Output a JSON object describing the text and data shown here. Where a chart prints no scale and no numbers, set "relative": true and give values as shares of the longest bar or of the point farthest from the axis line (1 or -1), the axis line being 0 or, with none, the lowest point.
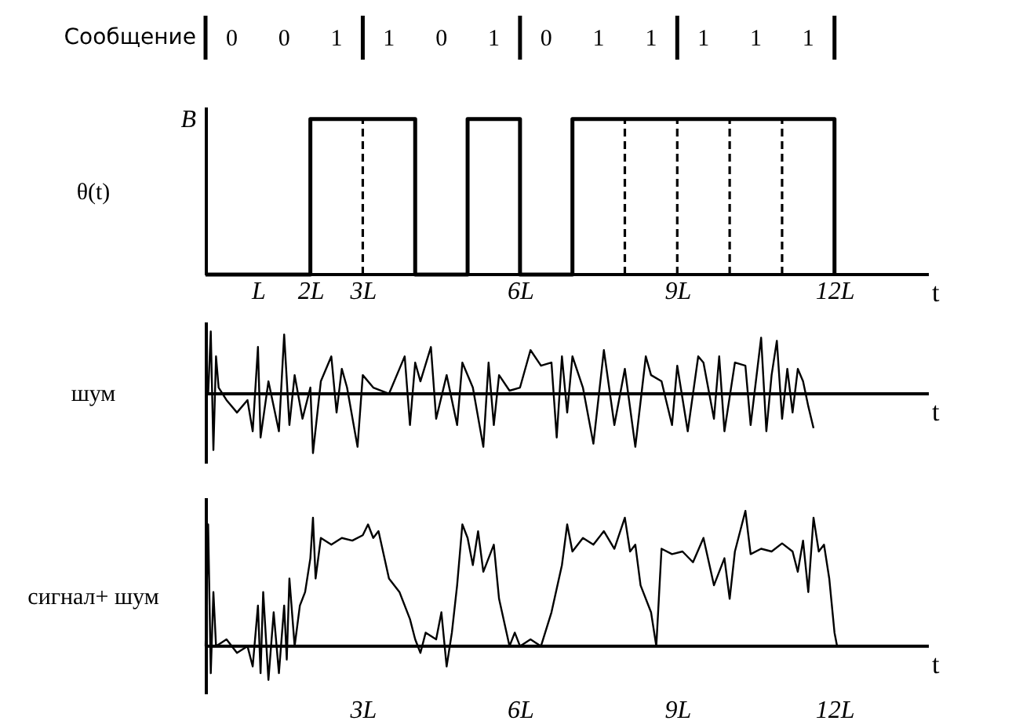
{
  "chart_data": [
    {
      "type": "step",
      "ylabel": "θ(t)",
      "xlabel": "t",
      "relative": true,
      "color": "#000000",
      "x": [
        0,
        2,
        4,
        5,
        6,
        7,
        12
      ],
      "values": [
        0,
        1,
        0,
        1,
        0,
        1,
        0
      ],
      "xlim": [
        0,
        13.8
      ],
      "xticks": [
        {
          "value": 1,
          "label": "L"
        },
        {
          "value": 2,
          "label": "2L"
        },
        {
          "value": 3,
          "label": "3L"
        },
        {
          "value": 6,
          "label": "6L"
        },
        {
          "value": 9,
          "label": "9L"
        },
        {
          "value": 12,
          "label": "12L"
        }
      ],
      "annotations": [
        "B",
        "Сообщение",
        "0 0 1",
        "1 0 1",
        "0 1 1",
        "1 1 1"
      ],
      "ref_lines": [
        {
          "axis": "x",
          "value": 3,
          "line_style": "dashed"
        },
        {
          "axis": "x",
          "value": 8,
          "line_style": "dashed"
        },
        {
          "axis": "x",
          "value": 9,
          "line_style": "dashed"
        },
        {
          "axis": "x",
          "value": 10,
          "line_style": "dashed"
        },
        {
          "axis": "x",
          "value": 11,
          "line_style": "dashed"
        }
      ]
    },
    {
      "type": "line",
      "ylabel": "шум",
      "xlabel": "t",
      "relative": true,
      "tick_labels": false,
      "color": "#000000",
      "xlim": [
        0,
        13.8
      ],
      "x": [
        0.05,
        0.1,
        0.15,
        0.2,
        0.25,
        0.4,
        0.6,
        0.8,
        0.9,
        1.0,
        1.05,
        1.2,
        1.4,
        1.5,
        1.6,
        1.7,
        1.85,
        2.0,
        2.05,
        2.2,
        2.4,
        2.5,
        2.6,
        2.7,
        2.9,
        3.0,
        3.2,
        3.5,
        3.7,
        3.8,
        3.9,
        4.0,
        4.1,
        4.3,
        4.4,
        4.6,
        4.8,
        4.9,
        5.1,
        5.3,
        5.4,
        5.5,
        5.6,
        5.8,
        6.0,
        6.2,
        6.4,
        6.6,
        6.7,
        6.8,
        6.9,
        7.0,
        7.2,
        7.4,
        7.6,
        7.8,
        8.0,
        8.2,
        8.4,
        8.5,
        8.7,
        8.9,
        9.0,
        9.2,
        9.4,
        9.5,
        9.7,
        9.8,
        9.9,
        10.1,
        10.3,
        10.4,
        10.6,
        10.7,
        10.8,
        10.9,
        11.0,
        11.1,
        11.2,
        11.3,
        11.4,
        11.5,
        11.6
      ],
      "values": [
        0,
        1.0,
        -0.9,
        0.6,
        0.1,
        -0.1,
        -0.3,
        -0.1,
        -0.6,
        0.75,
        -0.7,
        0.2,
        -0.6,
        0.95,
        -0.5,
        0.3,
        -0.4,
        0.1,
        -0.95,
        0.2,
        0.6,
        -0.3,
        0.4,
        0.1,
        -0.85,
        0.3,
        0.1,
        0.0,
        0.4,
        0.6,
        -0.5,
        0.5,
        0.2,
        0.75,
        -0.4,
        0.3,
        -0.5,
        0.5,
        0.1,
        -0.85,
        0.5,
        -0.5,
        0.3,
        0.05,
        0.1,
        0.7,
        0.45,
        0.5,
        -0.7,
        0.6,
        -0.3,
        0.6,
        0.1,
        -0.8,
        0.7,
        -0.5,
        0.4,
        -0.85,
        0.6,
        0.3,
        0.2,
        -0.5,
        0.45,
        -0.6,
        0.6,
        0.5,
        -0.4,
        0.6,
        -0.6,
        0.5,
        0.45,
        -0.5,
        0.9,
        -0.6,
        0.3,
        0.85,
        -0.4,
        0.4,
        -0.3,
        0.4,
        0.2,
        -0.2,
        -0.55
      ]
    },
    {
      "type": "line",
      "ylabel": "сигнал+ шум",
      "xlabel": "t",
      "relative": true,
      "tick_labels": "x",
      "color": "#000000",
      "xlim": [
        0,
        13.8
      ],
      "xticks": [
        {
          "value": 3,
          "label": "3L"
        },
        {
          "value": 6,
          "label": "6L"
        },
        {
          "value": 9,
          "label": "9L"
        },
        {
          "value": 12,
          "label": "12L"
        }
      ],
      "x": [
        0.0,
        0.05,
        0.1,
        0.15,
        0.2,
        0.4,
        0.6,
        0.8,
        0.9,
        1.0,
        1.05,
        1.1,
        1.2,
        1.3,
        1.4,
        1.5,
        1.55,
        1.6,
        1.7,
        1.8,
        1.9,
        2.0,
        2.05,
        2.1,
        2.2,
        2.4,
        2.6,
        2.8,
        3.0,
        3.1,
        3.2,
        3.3,
        3.5,
        3.7,
        3.9,
        4.0,
        4.1,
        4.2,
        4.4,
        4.5,
        4.6,
        4.7,
        4.8,
        4.9,
        5.0,
        5.1,
        5.2,
        5.3,
        5.5,
        5.6,
        5.8,
        5.9,
        6.0,
        6.2,
        6.4,
        6.6,
        6.8,
        6.9,
        7.0,
        7.2,
        7.4,
        7.6,
        7.8,
        8.0,
        8.1,
        8.2,
        8.3,
        8.5,
        8.6,
        8.7,
        8.9,
        9.1,
        9.3,
        9.5,
        9.7,
        9.9,
        10.0,
        10.1,
        10.3,
        10.4,
        10.6,
        10.8,
        11.0,
        11.2,
        11.3,
        11.4,
        11.5,
        11.6,
        11.7,
        11.8,
        11.9,
        12.0,
        12.05
      ],
      "values": [
        0,
        0.9,
        -0.2,
        0.4,
        0.0,
        0.05,
        -0.05,
        0.0,
        -0.15,
        0.3,
        -0.2,
        0.4,
        -0.25,
        0.25,
        -0.2,
        0.3,
        -0.1,
        0.5,
        0.0,
        0.3,
        0.4,
        0.65,
        0.95,
        0.5,
        0.8,
        0.75,
        0.8,
        0.78,
        0.82,
        0.9,
        0.8,
        0.85,
        0.5,
        0.4,
        0.2,
        0.05,
        -0.05,
        0.1,
        0.05,
        0.25,
        -0.15,
        0.1,
        0.45,
        0.9,
        0.8,
        0.6,
        0.85,
        0.55,
        0.75,
        0.35,
        0.0,
        0.1,
        0.0,
        0.05,
        0.0,
        0.25,
        0.6,
        0.9,
        0.7,
        0.8,
        0.75,
        0.85,
        0.72,
        0.95,
        0.7,
        0.75,
        0.45,
        0.25,
        0.0,
        0.72,
        0.68,
        0.7,
        0.62,
        0.8,
        0.45,
        0.65,
        0.35,
        0.7,
        1.0,
        0.68,
        0.72,
        0.7,
        0.76,
        0.7,
        0.55,
        0.78,
        0.4,
        0.95,
        0.7,
        0.75,
        0.5,
        0.1,
        0.0
      ]
    }
  ]
}
